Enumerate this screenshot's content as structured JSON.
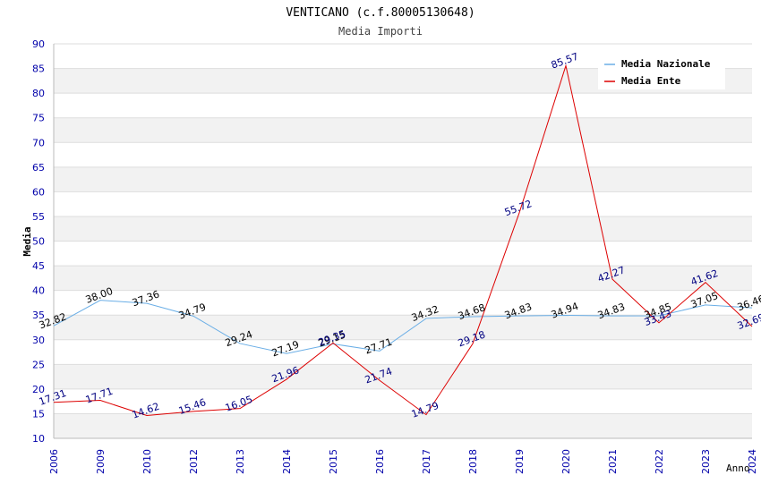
{
  "chart_data": {
    "type": "line",
    "title": "VENTICANO (c.f.80005130648)",
    "subtitle": "Media Importi",
    "xlabel": "Anno",
    "ylabel": "Media",
    "ylim": [
      10,
      90
    ],
    "yticks": [
      10,
      15,
      20,
      25,
      30,
      35,
      40,
      45,
      50,
      55,
      60,
      65,
      70,
      75,
      80,
      85,
      90
    ],
    "grid": true,
    "legend_position": "top-right",
    "categories": [
      "2006",
      "2009",
      "2010",
      "2012",
      "2013",
      "2014",
      "2015",
      "2016",
      "2017",
      "2018",
      "2019",
      "2020",
      "2021",
      "2022",
      "2023",
      "2024"
    ],
    "series": [
      {
        "name": "Media Nazionale",
        "color": "#6aaee6",
        "label_color": "#000000",
        "values": [
          32.82,
          38.0,
          37.36,
          34.79,
          29.24,
          27.19,
          29.15,
          27.71,
          34.32,
          34.68,
          34.83,
          34.94,
          34.83,
          34.85,
          37.05,
          36.46
        ],
        "labels": [
          "32.82",
          "38.00",
          "37.36",
          "34.79",
          "29.24",
          "27.19",
          "29.15",
          "27.71",
          "34.32",
          "34.68",
          "34.83",
          "34.94",
          "34.83",
          "34.85",
          "37.05",
          "36.46"
        ]
      },
      {
        "name": "Media Ente",
        "color": "#dd0000",
        "label_color": "#000080",
        "values": [
          17.31,
          17.71,
          14.62,
          15.46,
          16.05,
          21.96,
          29.35,
          21.74,
          14.79,
          29.18,
          55.72,
          85.57,
          42.27,
          33.43,
          41.62,
          32.69
        ],
        "labels": [
          "17.31",
          "17.71",
          "14.62",
          "15.46",
          "16.05",
          "21.96",
          "29.35",
          "21.74",
          "14.79",
          "29.18",
          "55.72",
          "85.57",
          "42.27",
          "33.43",
          "41.62",
          "32.69"
        ]
      }
    ]
  },
  "colors": {
    "axis_text": "#0000aa",
    "band": "#f2f2f2",
    "grid": "#dddddd",
    "axis_line": "#bbbbbb",
    "title_text": "#000000",
    "subtitle_text": "#444444"
  }
}
